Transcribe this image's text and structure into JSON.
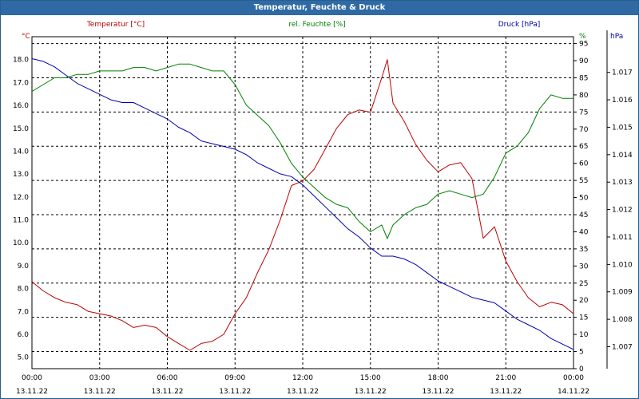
{
  "window": {
    "title": "Temperatur, Feuchte & Druck"
  },
  "chart_data": {
    "type": "line",
    "title": "Temperatur, Feuchte & Druck",
    "x_ticks": [
      {
        "time": "00:00",
        "date": "13.11.22"
      },
      {
        "time": "03:00",
        "date": "13.11.22"
      },
      {
        "time": "06:00",
        "date": "13.11.22"
      },
      {
        "time": "09:00",
        "date": "13.11.22"
      },
      {
        "time": "12:00",
        "date": "13.11.22"
      },
      {
        "time": "15:00",
        "date": "13.11.22"
      },
      {
        "time": "18:00",
        "date": "13.11.22"
      },
      {
        "time": "21:00",
        "date": "13.11.22"
      },
      {
        "time": "00:00",
        "date": "14.11.22"
      }
    ],
    "xlim_hours": [
      0,
      24
    ],
    "grid": true,
    "axes": {
      "temperature": {
        "unit_label": "°C",
        "legend": "Temperatur [°C]",
        "color": "#c00000",
        "ylim": [
          4.5,
          19.0
        ],
        "ticks": [
          "5.0",
          "6.0",
          "7.0",
          "8.0",
          "9.0",
          "10.0",
          "11.0",
          "12.0",
          "13.0",
          "14.0",
          "15.0",
          "16.0",
          "17.0",
          "18.0"
        ]
      },
      "humidity": {
        "unit_label": "%",
        "legend": "rel. Feuchte [%]",
        "color": "#008000",
        "ylim": [
          0,
          97
        ],
        "ticks": [
          "0",
          "5",
          "10",
          "15",
          "20",
          "25",
          "30",
          "35",
          "40",
          "45",
          "50",
          "55",
          "60",
          "65",
          "70",
          "75",
          "80",
          "85",
          "90",
          "95"
        ]
      },
      "pressure": {
        "unit_label": "hPa",
        "legend": "Druck [hPa]",
        "color": "#0000b0",
        "ylim": [
          1006.2,
          1018.3
        ],
        "ticks": [
          "1.007",
          "1.008",
          "1.009",
          "1.010",
          "1.011",
          "1.012",
          "1.013",
          "1.014",
          "1.015",
          "1.016",
          "1.017"
        ]
      }
    },
    "series": [
      {
        "name": "Temperatur [°C]",
        "axis": "temperature",
        "x": [
          0,
          0.5,
          1,
          1.5,
          2,
          2.5,
          3,
          3.5,
          4,
          4.5,
          5,
          5.5,
          6,
          6.5,
          7,
          7.5,
          8,
          8.5,
          9,
          9.5,
          10,
          10.5,
          11,
          11.5,
          12,
          12.5,
          13,
          13.5,
          14,
          14.5,
          15,
          15.5,
          15.75,
          16,
          16.5,
          17,
          17.5,
          18,
          18.5,
          19,
          19.5,
          20,
          20.5,
          21,
          21.5,
          22,
          22.5,
          23,
          23.5,
          24
        ],
        "values": [
          8.3,
          7.9,
          7.6,
          7.4,
          7.3,
          7.0,
          6.9,
          6.8,
          6.6,
          6.3,
          6.4,
          6.3,
          5.9,
          5.6,
          5.3,
          5.6,
          5.7,
          6.0,
          6.9,
          7.6,
          8.7,
          9.7,
          11.0,
          12.5,
          12.7,
          13.2,
          14.1,
          15.0,
          15.6,
          15.8,
          15.7,
          17.2,
          18.0,
          16.1,
          15.3,
          14.3,
          13.6,
          13.1,
          13.4,
          13.5,
          12.8,
          10.2,
          10.7,
          9.2,
          8.3,
          7.6,
          7.2,
          7.4,
          7.3,
          6.9
        ]
      },
      {
        "name": "rel. Feuchte [%]",
        "axis": "humidity",
        "x": [
          0,
          0.5,
          1,
          1.5,
          2,
          2.5,
          3,
          3.5,
          4,
          4.5,
          5,
          5.5,
          6,
          6.5,
          7,
          7.5,
          8,
          8.5,
          9,
          9.5,
          10,
          10.5,
          11,
          11.5,
          12,
          12.5,
          13,
          13.5,
          14,
          14.5,
          15,
          15.5,
          15.75,
          16,
          16.5,
          17,
          17.5,
          18,
          18.5,
          19,
          19.5,
          20,
          20.5,
          21,
          21.5,
          22,
          22.5,
          23,
          23.5,
          24
        ],
        "values": [
          81,
          83,
          85,
          85,
          86,
          86,
          87,
          87,
          87,
          88,
          88,
          87,
          88,
          89,
          89,
          88,
          87,
          87,
          83,
          77,
          74,
          71,
          66,
          60,
          56,
          53,
          50,
          48,
          47,
          43,
          40,
          42,
          38,
          42,
          45,
          47,
          48,
          51,
          52,
          51,
          50,
          51,
          56,
          63,
          65,
          69,
          76,
          80,
          79,
          79
        ]
      },
      {
        "name": "Druck [hPa]",
        "axis": "pressure",
        "x": [
          0,
          0.5,
          1,
          1.5,
          2,
          2.5,
          3,
          3.5,
          4,
          4.5,
          5,
          5.5,
          6,
          6.5,
          7,
          7.5,
          8,
          8.5,
          9,
          9.5,
          10,
          10.5,
          11,
          11.5,
          12,
          12.5,
          13,
          13.5,
          14,
          14.5,
          15,
          15.5,
          16,
          16.5,
          17,
          17.5,
          18,
          18.5,
          19,
          19.5,
          20,
          20.5,
          21,
          21.5,
          22,
          22.5,
          23,
          23.5,
          24
        ],
        "values": [
          1017.5,
          1017.4,
          1017.2,
          1016.9,
          1016.6,
          1016.4,
          1016.2,
          1016.0,
          1015.9,
          1015.9,
          1015.7,
          1015.5,
          1015.3,
          1015.0,
          1014.8,
          1014.5,
          1014.4,
          1014.3,
          1014.2,
          1014.0,
          1013.7,
          1013.5,
          1013.3,
          1013.2,
          1012.9,
          1012.5,
          1012.1,
          1011.7,
          1011.3,
          1011.0,
          1010.6,
          1010.3,
          1010.3,
          1010.2,
          1010.0,
          1009.7,
          1009.4,
          1009.2,
          1009.0,
          1008.8,
          1008.7,
          1008.6,
          1008.3,
          1008.0,
          1007.8,
          1007.6,
          1007.3,
          1007.1,
          1006.9
        ]
      }
    ]
  }
}
